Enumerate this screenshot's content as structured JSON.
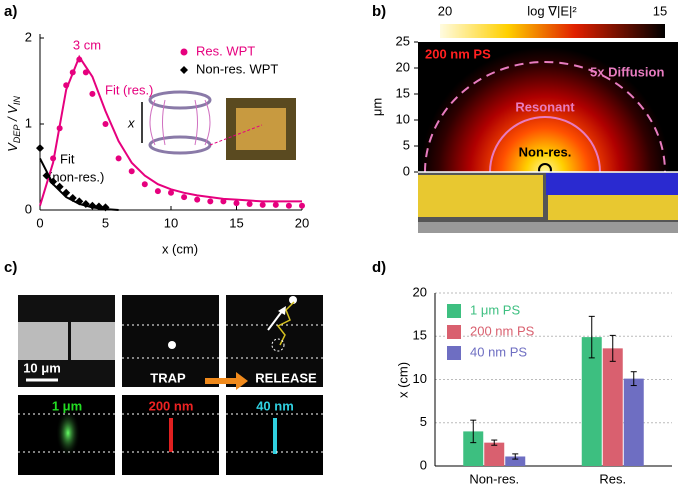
{
  "panel_labels": [
    "a)",
    "b)",
    "c)",
    "d)"
  ],
  "chart_data": [
    {
      "type": "scatter",
      "xlabel": "x (cm)",
      "ylabel": [
        "V",
        "DEP",
        " / V",
        "IN"
      ],
      "xlim": [
        0,
        20
      ],
      "ylim": [
        0,
        2
      ],
      "xticks": [
        0,
        5,
        10,
        15,
        20
      ],
      "yticks": [
        0,
        1,
        2
      ],
      "annotations": {
        "peak": "3 cm",
        "fit_res": "Fit (res.)",
        "fit_nonres": [
          "Fit",
          "(non-res.)"
        ],
        "inset_axis": "x"
      },
      "series": [
        {
          "name": "Res. WPT",
          "color": "#e6007e",
          "marker": "circle",
          "x": [
            1,
            1.5,
            2,
            2.5,
            3,
            3.5,
            4,
            5,
            6,
            7,
            8,
            9,
            10,
            11,
            12,
            13,
            14,
            15,
            16,
            17,
            18,
            19,
            20
          ],
          "values": [
            0.6,
            0.95,
            1.45,
            1.6,
            1.75,
            1.6,
            1.35,
            1.0,
            0.6,
            0.45,
            0.3,
            0.22,
            0.2,
            0.15,
            0.12,
            0.1,
            0.1,
            0.08,
            0.07,
            0.06,
            0.06,
            0.05,
            0.05
          ]
        },
        {
          "name": "Non-res. WPT",
          "color": "#000000",
          "marker": "diamond",
          "x": [
            0,
            0.5,
            1,
            1.5,
            2,
            2.5,
            3,
            3.5,
            4,
            4.5,
            5
          ],
          "values": [
            0.72,
            0.4,
            0.33,
            0.27,
            0.2,
            0.14,
            0.1,
            0.07,
            0.05,
            0.04,
            0.03
          ]
        }
      ],
      "fit_lines": [
        {
          "color": "#e6007e",
          "x": [
            0,
            1,
            2,
            3,
            4,
            5,
            6,
            7,
            8,
            9,
            10,
            11,
            12,
            13,
            14,
            15,
            16,
            17,
            18,
            19,
            20
          ],
          "values": [
            0.05,
            0.55,
            1.4,
            1.78,
            1.55,
            1.15,
            0.8,
            0.55,
            0.4,
            0.3,
            0.24,
            0.2,
            0.17,
            0.15,
            0.13,
            0.12,
            0.11,
            0.1,
            0.1,
            0.1,
            0.1
          ]
        },
        {
          "color": "#000000",
          "x": [
            0,
            1,
            2,
            3,
            4,
            5,
            6
          ],
          "values": [
            0.6,
            0.3,
            0.15,
            0.07,
            0.03,
            0.01,
            0
          ]
        }
      ]
    },
    {
      "type": "bar",
      "ylabel": "x (cm)",
      "categories": [
        "Non-res.",
        "Res."
      ],
      "ylim": [
        0,
        20
      ],
      "yticks": [
        0,
        5,
        10,
        15,
        20
      ],
      "grid": true,
      "series": [
        {
          "name": "1 μm PS",
          "color": "#3dbf80",
          "values": [
            4.0,
            14.9
          ],
          "errors": [
            1.3,
            2.4
          ]
        },
        {
          "name": "200 nm PS",
          "color": "#d9606f",
          "values": [
            2.7,
            13.6
          ],
          "errors": [
            0.3,
            1.5
          ]
        },
        {
          "name": "40 nm PS",
          "color": "#6e6ec2",
          "values": [
            1.1,
            10.1
          ],
          "errors": [
            0.3,
            0.8
          ]
        }
      ]
    }
  ],
  "panel_b": {
    "colorbar": {
      "left": "20",
      "label": "log ∇|E|²",
      "right": "15"
    },
    "ylabel": "μm",
    "ylim": [
      0,
      25
    ],
    "yticks": [
      0,
      5,
      10,
      15,
      20,
      25
    ],
    "labels": {
      "particle": "200 nm PS",
      "diffusion": "5x Diffusion",
      "resonant": "Resonant",
      "nonres": "Non-res."
    }
  },
  "panel_c": {
    "scale": "10 μm",
    "trap": "TRAP",
    "release": "RELEASE",
    "sizes": [
      "1 μm",
      "200 nm",
      "40 nm"
    ]
  }
}
